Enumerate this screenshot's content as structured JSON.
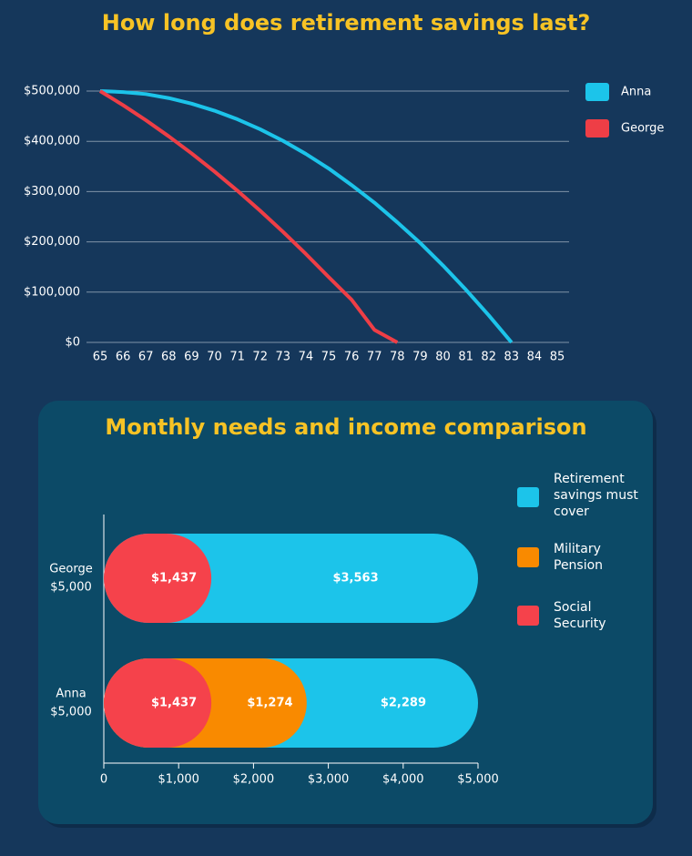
{
  "chart_data": [
    {
      "type": "line",
      "title": "How long does retirement savings last?",
      "x": [
        65,
        66,
        67,
        68,
        69,
        70,
        71,
        72,
        73,
        74,
        75,
        76,
        77,
        78,
        79,
        80,
        81,
        82,
        83,
        84,
        85
      ],
      "xlim": [
        65,
        85
      ],
      "xticks": [
        65,
        66,
        67,
        68,
        69,
        70,
        71,
        72,
        73,
        74,
        75,
        76,
        77,
        78,
        79,
        80,
        81,
        82,
        83,
        84,
        85
      ],
      "ylim": [
        0,
        500000
      ],
      "yticks": [
        {
          "value": 0,
          "label": "$0"
        },
        {
          "value": 100000,
          "label": "$100,000"
        },
        {
          "value": 200000,
          "label": "$200,000"
        },
        {
          "value": 300000,
          "label": "$300,000"
        },
        {
          "value": 400000,
          "label": "$400,000"
        },
        {
          "value": 500000,
          "label": "$500,000"
        }
      ],
      "grid": true,
      "legend": "right",
      "series": [
        {
          "name": "Anna",
          "color": "#1cc4ea",
          "values": [
            500000,
            498000,
            494000,
            486000,
            475000,
            461000,
            444000,
            424000,
            401000,
            375000,
            346000,
            313000,
            278000,
            239000,
            198000,
            153000,
            105000,
            54000,
            0,
            null,
            null
          ]
        },
        {
          "name": "George",
          "color": "#ee3e46",
          "values": [
            500000,
            472000,
            442000,
            410000,
            376000,
            340000,
            302000,
            262000,
            220000,
            176000,
            130000,
            85000,
            25000,
            0,
            null,
            null,
            null,
            null,
            null,
            null,
            null
          ]
        }
      ]
    },
    {
      "type": "stacked-bar",
      "title": "Monthly needs and income comparison",
      "orientation": "horizontal",
      "categories": [
        "George",
        "Anna"
      ],
      "totals": [
        5000,
        5000
      ],
      "total_labels": [
        "$5,000",
        "$5,000"
      ],
      "xlim": [
        0,
        5000
      ],
      "xticks": [
        0,
        {
          "value": 1000,
          "label": "$1,000"
        },
        {
          "value": 2000,
          "label": "$2,000"
        },
        {
          "value": 3000,
          "label": "$3,000"
        },
        {
          "value": 4000,
          "label": "$4,000"
        },
        {
          "value": 5000,
          "label": "$5,000"
        }
      ],
      "series": [
        {
          "name": "Social Security",
          "color": "#f5424b",
          "values": [
            1437,
            1437
          ],
          "value_labels": [
            "$1,437",
            "$1,437"
          ]
        },
        {
          "name": "Military Pension",
          "color": "#f98a00",
          "values": [
            null,
            1274
          ],
          "value_labels": [
            null,
            "$1,274"
          ]
        },
        {
          "name": "Retirement savings must cover",
          "color": "#1cc4ea",
          "values": [
            3563,
            2289
          ],
          "value_labels": [
            "$3,563",
            "$2,289"
          ]
        }
      ]
    }
  ]
}
